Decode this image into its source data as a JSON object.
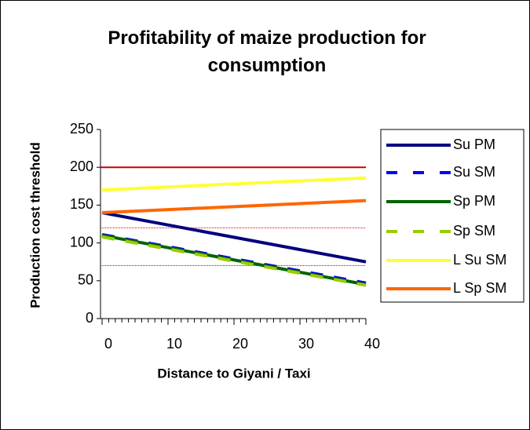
{
  "chart_data": {
    "type": "line",
    "title": "Profitability of maize production for consumption",
    "x_label": "Distance to Giyani / Taxi",
    "y_label": "Production cost threshold",
    "x": [
      0,
      40
    ],
    "series": [
      {
        "name": "Su PM",
        "color": "#000080",
        "dash": false,
        "values": [
          140,
          75
        ]
      },
      {
        "name": "Su SM",
        "color": "#0000ff",
        "dash": true,
        "values": [
          111,
          47
        ]
      },
      {
        "name": "Sp PM",
        "color": "#006400",
        "dash": false,
        "values": [
          110,
          45
        ]
      },
      {
        "name": "Sp SM",
        "color": "#99cc00",
        "dash": true,
        "values": [
          108,
          44
        ]
      },
      {
        "name": "L Su SM",
        "color": "#ffff33",
        "dash": false,
        "values": [
          170,
          186
        ]
      },
      {
        "name": "L Sp SM",
        "color": "#ff6600",
        "dash": false,
        "values": [
          140,
          156
        ]
      }
    ],
    "reference_lines": [
      200,
      120,
      70
    ],
    "reference_color": "#cc0000",
    "xlim": [
      0,
      40
    ],
    "xticks": [
      0,
      10,
      20,
      30,
      40
    ],
    "ylim": [
      0,
      250
    ],
    "yticks": [
      0,
      50,
      100,
      150,
      200,
      250
    ],
    "legend": "right"
  }
}
